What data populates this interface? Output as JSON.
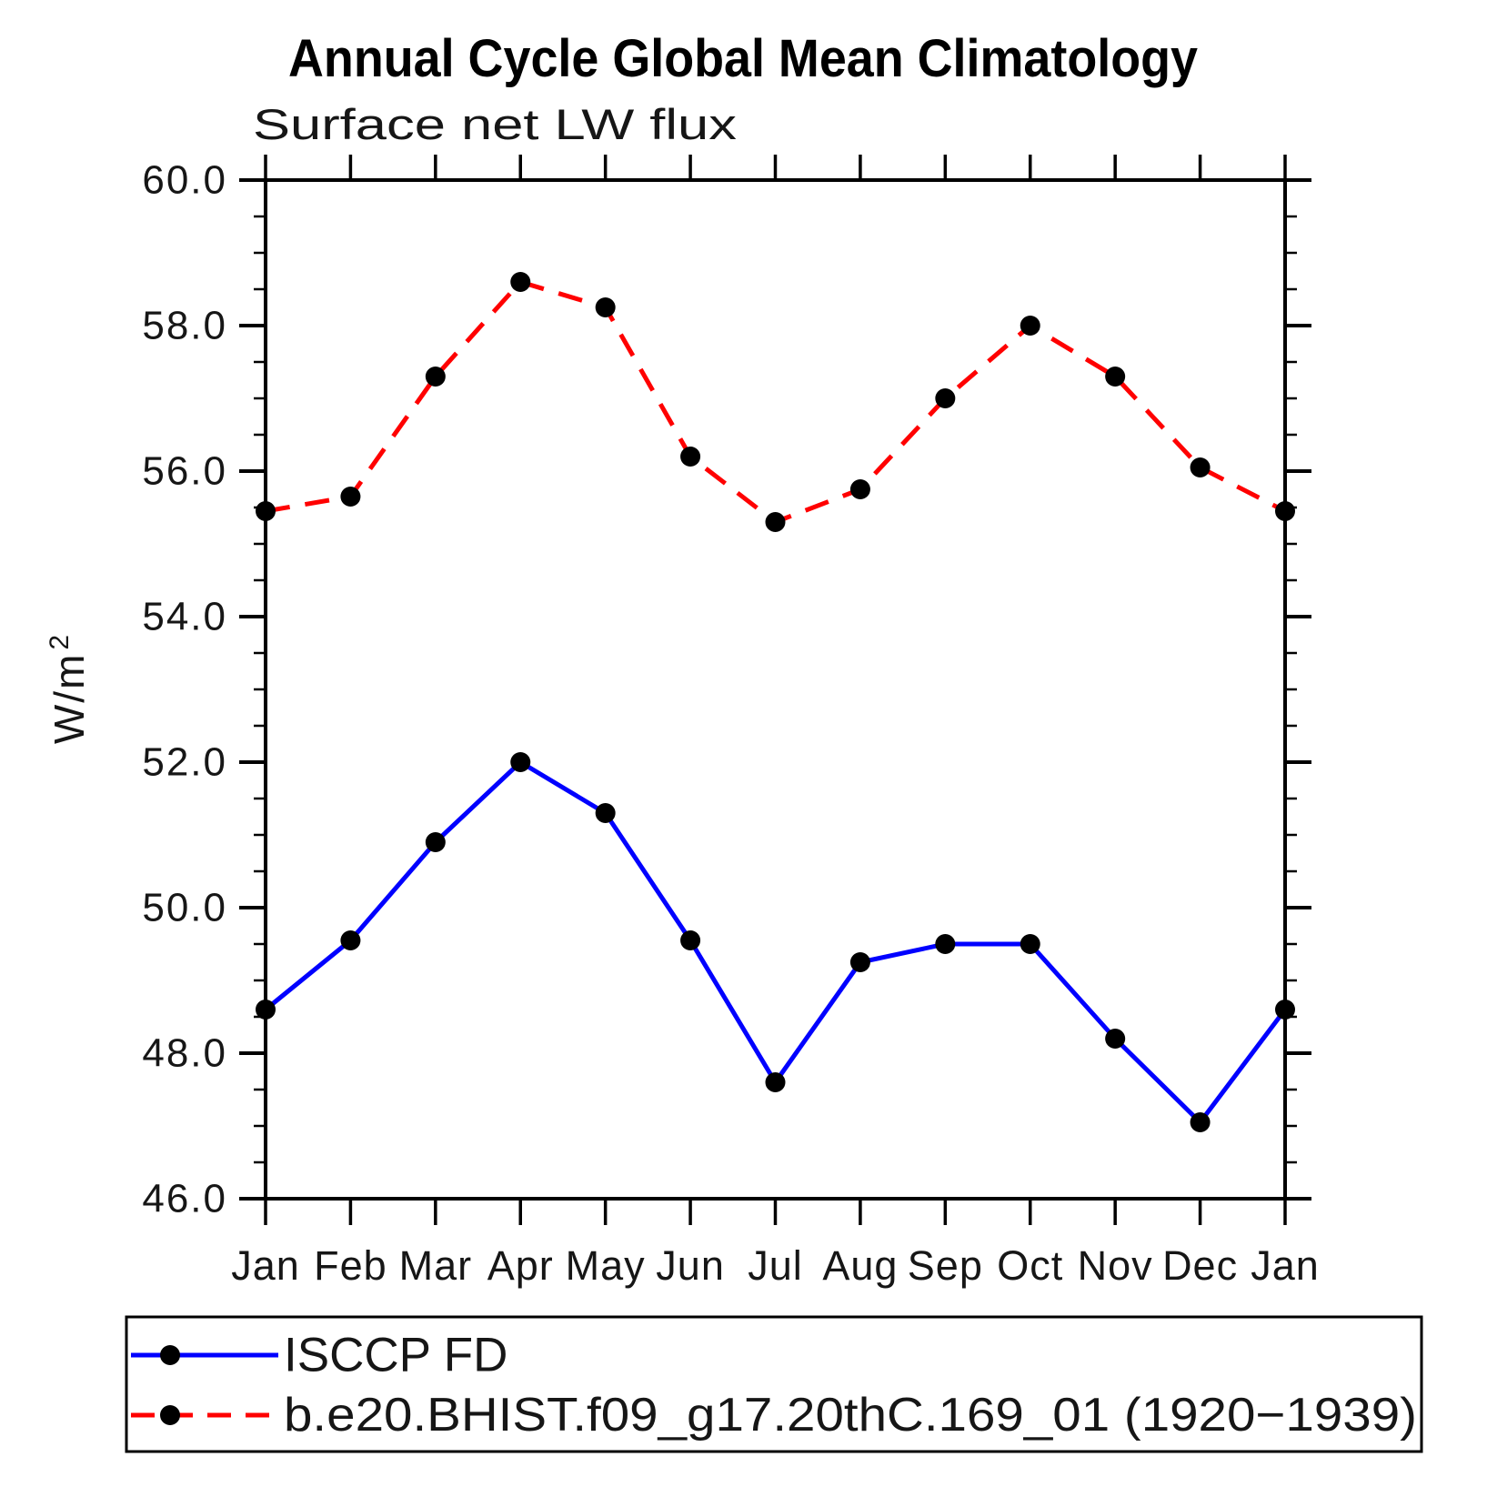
{
  "title": "Annual Cycle Global Mean Climatology",
  "subtitle": "Surface net LW flux",
  "y_axis": {
    "title_base": "W/m",
    "title_sup": "2",
    "tick_labels": [
      "60.0",
      "58.0",
      "56.0",
      "54.0",
      "52.0",
      "50.0",
      "48.0",
      "46.0"
    ]
  },
  "x_axis": {
    "tick_labels": [
      "Jan",
      "Feb",
      "Mar",
      "Apr",
      "May",
      "Jun",
      "Jul",
      "Aug",
      "Sep",
      "Oct",
      "Nov",
      "Dec",
      "Jan"
    ]
  },
  "colors": {
    "frame": "#000000",
    "marker": "#000000",
    "series_blue": "#0000ff",
    "series_red": "#ff0000"
  },
  "chart_data": {
    "type": "line",
    "title": "Annual Cycle Global Mean Climatology",
    "subtitle": "Surface net LW flux",
    "ylabel": "W/m²",
    "xlabel": "",
    "ylim": [
      46.0,
      60.0
    ],
    "ytick_step": 2.0,
    "yminor_step": 0.5,
    "grid": false,
    "legend_position": "bottom",
    "categories": [
      "Jan",
      "Feb",
      "Mar",
      "Apr",
      "May",
      "Jun",
      "Jul",
      "Aug",
      "Sep",
      "Oct",
      "Nov",
      "Dec",
      "Jan"
    ],
    "series": [
      {
        "name": "ISCCP FD",
        "color": "#0000ff",
        "line_style": "solid",
        "marker": "filled-circle",
        "values": [
          48.6,
          49.55,
          50.9,
          52.0,
          51.3,
          49.55,
          47.6,
          49.25,
          49.5,
          49.5,
          48.2,
          47.05,
          48.6
        ]
      },
      {
        "name": "b.e20.BHIST.f09_g17.20thC.169_01 (1920−1939)",
        "color": "#ff0000",
        "line_style": "dashed",
        "marker": "filled-circle",
        "values": [
          55.45,
          55.65,
          57.3,
          58.6,
          58.25,
          56.2,
          55.3,
          55.75,
          57.0,
          58.0,
          57.3,
          56.05,
          55.45
        ]
      }
    ]
  }
}
